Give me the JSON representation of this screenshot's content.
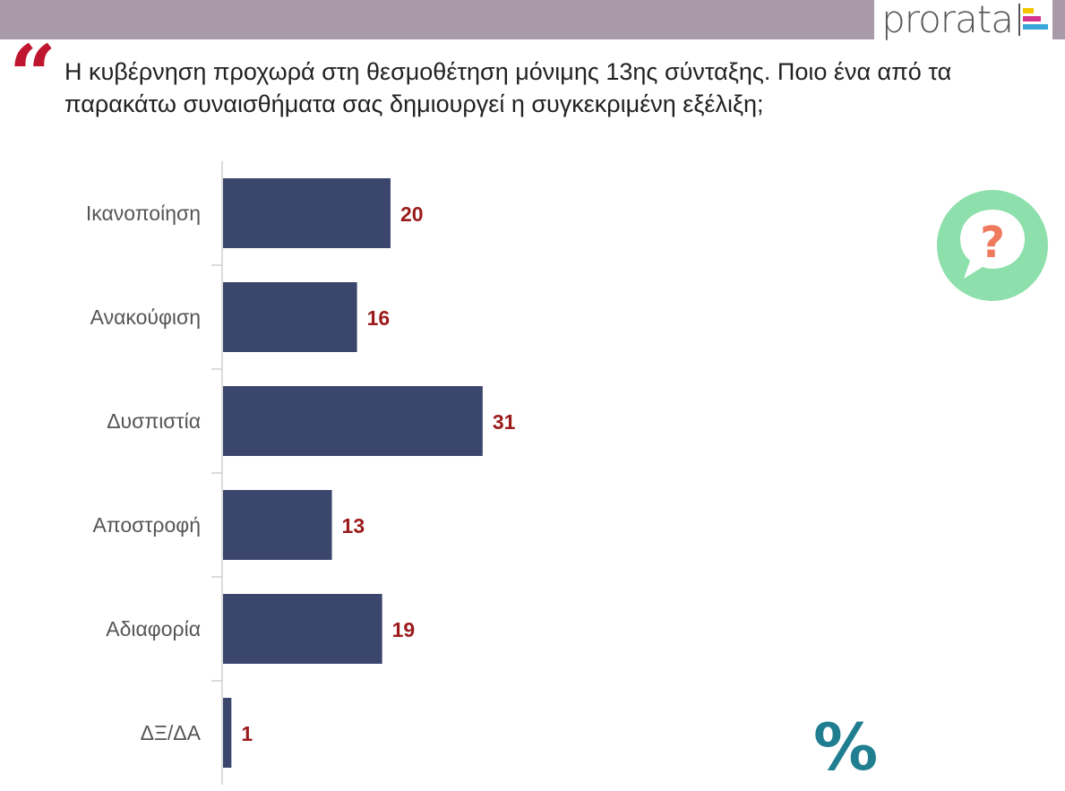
{
  "brand": {
    "name": "prorata"
  },
  "question": {
    "quote_icon": "quote-icon",
    "text": "Η κυβέρνηση προχωρά στη θεσμοθέτηση μόνιμης 13ης σύνταξης. Ποιο ένα από τα παρακάτω συναισθήματα σας δημιουργεί η συγκεκριμένη εξέλιξη;"
  },
  "icons": {
    "question_bubble": "question-bubble-icon",
    "percent": "percent-icon",
    "percent_glyph": "%"
  },
  "colors": {
    "header_band": "#a89aa8",
    "bar": "#3b466d",
    "value_label": "#9b1b1b",
    "quote": "#c0152f",
    "bubble": "#8ddfab",
    "bubble_question": "#f07a5e",
    "percent": "#1f7f91"
  },
  "chart_data": {
    "type": "bar",
    "orientation": "horizontal",
    "title": "",
    "xlabel": "",
    "ylabel": "",
    "categories": [
      "Ικανοποίηση",
      "Ανακούφιση",
      "Δυσπιστία",
      "Αποστροφή",
      "Αδιαφορία",
      "ΔΞ/ΔΑ"
    ],
    "values": [
      20,
      16,
      31,
      13,
      19,
      1
    ],
    "xlim": [
      0,
      100
    ],
    "grid": false,
    "legend": "none",
    "data_labels": true
  }
}
